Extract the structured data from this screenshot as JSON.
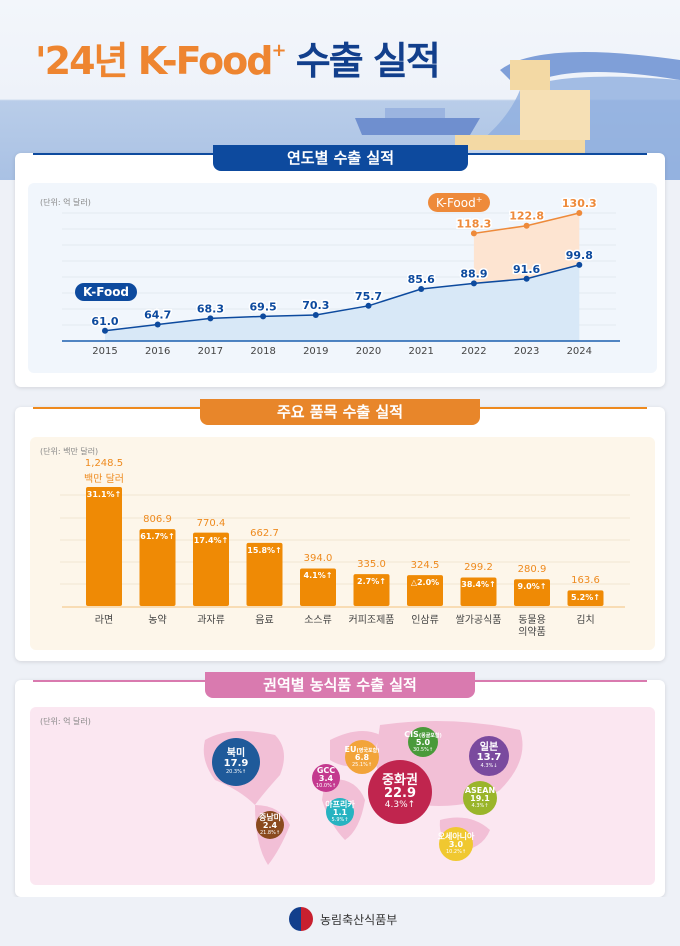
{
  "header": {
    "title_year": "'24년 K-Food",
    "title_sup": "+",
    "title_rest": "수출 실적"
  },
  "section1": {
    "title": "연도별 수출 실적",
    "unit": "(단위: 억 달러)",
    "label_kfood": "K-Food",
    "label_kfoodplus": "K-Food",
    "label_kfoodplus_sup": "+"
  },
  "section2": {
    "title": "주요 품목 수출 실적",
    "unit": "(단위: 백만 달러)",
    "first_unit": "백만 달러"
  },
  "section3": {
    "title": "권역별 농식품 수출 실적",
    "unit": "(단위: 억 달러)"
  },
  "footer": {
    "ministry": "농림축산식품부"
  },
  "colors": {
    "navy": "#0d4a9e",
    "orange": "#ee8a1e",
    "pink": "#d97aaf"
  },
  "chart_data": [
    {
      "type": "line",
      "title": "연도별 수출 실적",
      "ylabel": "(단위: 억 달러)",
      "x": [
        "2015",
        "2016",
        "2017",
        "2018",
        "2019",
        "2020",
        "2021",
        "2022",
        "2023",
        "2024"
      ],
      "series": [
        {
          "name": "K-Food",
          "values": [
            61.0,
            64.7,
            68.3,
            69.5,
            70.3,
            75.7,
            85.6,
            88.9,
            91.6,
            99.8
          ],
          "color": "#0d4a9e"
        },
        {
          "name": "K-Food+",
          "values": [
            null,
            null,
            null,
            null,
            null,
            null,
            null,
            118.3,
            122.8,
            130.3
          ],
          "color": "#ee8a3a"
        }
      ],
      "grid": true
    },
    {
      "type": "bar",
      "title": "주요 품목 수출 실적",
      "ylabel": "(단위: 백만 달러)",
      "categories": [
        "라면",
        "농약",
        "과자류",
        "음료",
        "소스류",
        "커피조제품",
        "인삼류",
        "쌀가공식품",
        "동물용\n의약품",
        "김치"
      ],
      "values": [
        1248.5,
        806.9,
        770.4,
        662.7,
        394.0,
        335.0,
        324.5,
        299.2,
        280.9,
        163.6
      ],
      "value_labels": [
        "1,248.5",
        "806.9",
        "770.4",
        "662.7",
        "394.0",
        "335.0",
        "324.5",
        "299.2",
        "280.9",
        "163.6"
      ],
      "change_labels": [
        "31.1%↑",
        "61.7%↑",
        "17.4%↑",
        "15.8%↑",
        "4.1%↑",
        "2.7%↑",
        "△2.0%",
        "38.4%↑",
        "9.0%↑",
        "5.2%↑"
      ],
      "grid": true
    }
  ],
  "regions": [
    {
      "name": "북미",
      "sub": "",
      "value": "17.9",
      "change": "20.3%↑",
      "color": "#1f5a9a"
    },
    {
      "name": "중남미",
      "sub": "",
      "value": "2.4",
      "change": "21.8%↑",
      "color": "#8a4a1e"
    },
    {
      "name": "EU",
      "sub": "(영국포함)",
      "value": "6.8",
      "change": "25.1%↑",
      "color": "#f2a43a"
    },
    {
      "name": "GCC",
      "sub": "",
      "value": "3.4",
      "change": "10.0%↑",
      "color": "#c43a8f"
    },
    {
      "name": "아프리카",
      "sub": "",
      "value": "1.1",
      "change": "5.9%↑",
      "color": "#27b3c1"
    },
    {
      "name": "CIS",
      "sub": "(몽골포함)",
      "value": "5.0",
      "change": "30.5%↑",
      "color": "#4a9a3a"
    },
    {
      "name": "중화권",
      "sub": "",
      "value": "22.9",
      "change": "4.3%↑",
      "color": "#c0254e"
    },
    {
      "name": "일본",
      "sub": "",
      "value": "13.7",
      "change": "4.3%↓",
      "color": "#7a4a9e"
    },
    {
      "name": "ASEAN",
      "sub": "",
      "value": "19.1",
      "change": "4.3%↑",
      "color": "#9ab52a"
    },
    {
      "name": "오세아니아",
      "sub": "",
      "value": "3.0",
      "change": "10.2%↑",
      "color": "#f0c830"
    }
  ]
}
